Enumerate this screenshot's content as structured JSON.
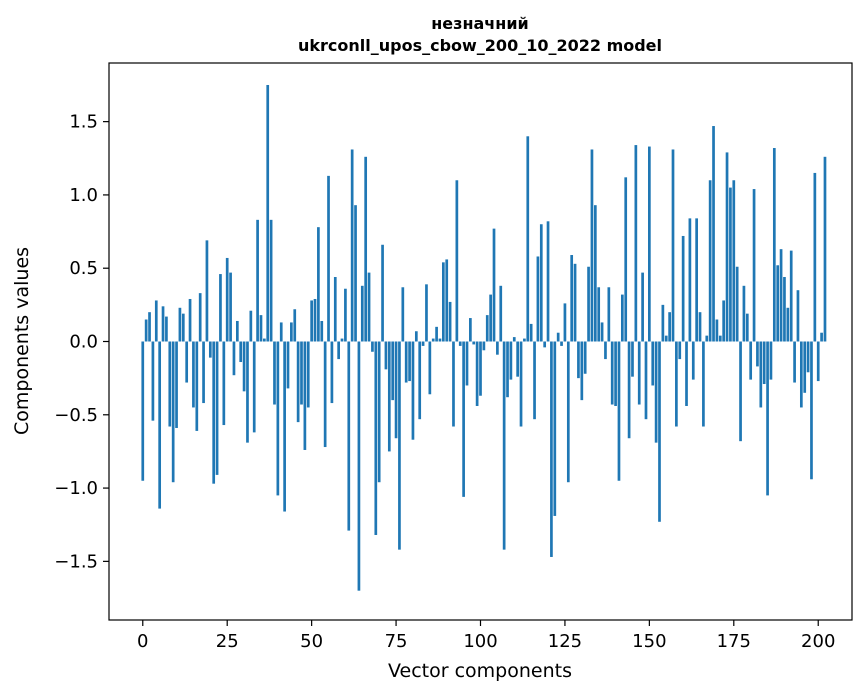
{
  "chart_data": {
    "type": "bar",
    "title_line1": "незначний",
    "title_line2": "ukrconll_upos_cbow_200_10_2022 model",
    "xlabel": "Vector components",
    "ylabel": "Components values",
    "xlim": [
      -10,
      210
    ],
    "ylim": [
      -1.9,
      1.9
    ],
    "x_ticks": [
      0,
      25,
      50,
      75,
      100,
      125,
      150,
      175,
      200
    ],
    "y_ticks": [
      -1.5,
      -1.0,
      -0.5,
      0.0,
      0.5,
      1.0,
      1.5
    ],
    "x_tick_labels": [
      "0",
      "25",
      "50",
      "75",
      "100",
      "125",
      "150",
      "175",
      "200"
    ],
    "y_tick_labels": [
      "−1.5",
      "−1.0",
      "−0.5",
      "0.0",
      "0.5",
      "1.0",
      "1.5"
    ],
    "bar_color": "#1f77b4",
    "grid": false,
    "values": [
      -0.95,
      0.15,
      0.2,
      -0.54,
      0.28,
      -1.14,
      0.24,
      0.17,
      -0.58,
      -0.96,
      -0.59,
      0.23,
      0.19,
      -0.28,
      0.29,
      -0.45,
      -0.61,
      0.33,
      -0.42,
      0.69,
      -0.11,
      -0.97,
      -0.91,
      0.46,
      -0.57,
      0.57,
      0.47,
      -0.23,
      0.14,
      -0.14,
      -0.34,
      -0.69,
      0.21,
      -0.62,
      0.83,
      0.18,
      0.02,
      1.75,
      0.83,
      -0.43,
      -1.05,
      0.13,
      -1.16,
      -0.32,
      0.13,
      0.22,
      -0.55,
      -0.43,
      -0.74,
      -0.45,
      0.28,
      0.29,
      0.78,
      0.14,
      -0.72,
      1.13,
      -0.42,
      0.44,
      -0.12,
      0.02,
      0.36,
      -1.29,
      1.31,
      0.93,
      -1.7,
      0.38,
      1.26,
      0.47,
      -0.07,
      -1.32,
      -0.96,
      0.66,
      -0.19,
      -0.75,
      -0.4,
      -0.66,
      -1.42,
      0.37,
      -0.28,
      -0.27,
      -0.67,
      0.07,
      -0.53,
      -0.03,
      0.39,
      -0.36,
      0.02,
      0.1,
      0.02,
      0.54,
      0.56,
      0.27,
      -0.58,
      1.1,
      -0.03,
      -1.06,
      -0.3,
      0.16,
      -0.02,
      -0.44,
      -0.37,
      -0.06,
      0.18,
      0.32,
      0.77,
      -0.09,
      0.38,
      -1.42,
      -0.38,
      -0.26,
      0.03,
      -0.24,
      -0.58,
      0.02,
      1.4,
      0.12,
      -0.53,
      0.58,
      0.8,
      -0.04,
      0.82,
      -1.47,
      -1.19,
      0.06,
      -0.03,
      0.26,
      -0.96,
      0.59,
      0.53,
      -0.25,
      -0.4,
      -0.22,
      0.51,
      1.31,
      0.93,
      0.37,
      0.13,
      -0.12,
      0.37,
      -0.43,
      -0.44,
      -0.95,
      0.32,
      1.12,
      -0.66,
      -0.24,
      1.34,
      -0.43,
      0.47,
      -0.53,
      1.33,
      -0.3,
      -0.69,
      -1.23,
      0.25,
      0.04,
      0.2,
      1.31,
      -0.58,
      -0.12,
      0.72,
      -0.44,
      0.84,
      -0.26,
      0.84,
      0.2,
      -0.58,
      0.04,
      1.1,
      1.47,
      0.15,
      0.04,
      0.28,
      1.29,
      1.05,
      1.1,
      0.51,
      -0.68,
      0.38,
      0.19,
      -0.26,
      1.04,
      -0.17,
      -0.45,
      -0.29,
      -1.05,
      -0.26,
      1.32,
      0.52,
      0.63,
      0.44,
      0.23,
      0.62,
      -0.28,
      0.35,
      -0.45,
      -0.35,
      -0.21,
      -0.94,
      1.15,
      -0.27,
      0.06,
      1.26
    ]
  }
}
